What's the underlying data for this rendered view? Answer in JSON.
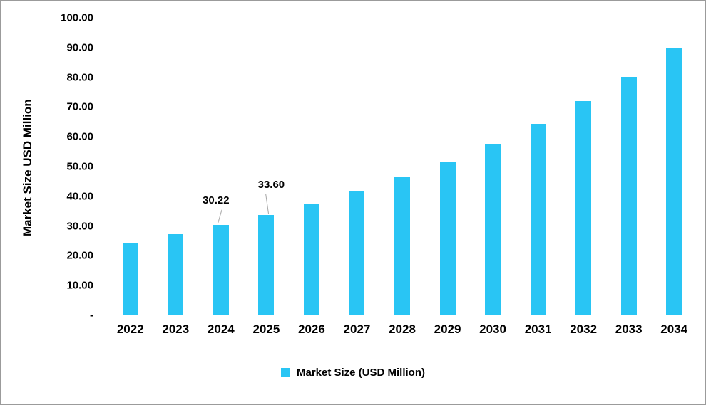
{
  "chart_data": {
    "type": "bar",
    "title": "",
    "xlabel": "",
    "ylabel": "Market Size USD Million",
    "legend": "Market Size (USD Million)",
    "ylim": [
      0,
      100
    ],
    "grid": false,
    "legend_position": "bottom-center",
    "bar_color": "#29c5f4",
    "y_ticks": [
      "100.00",
      "90.00",
      "80.00",
      "70.00",
      "60.00",
      "50.00",
      "40.00",
      "30.00",
      "20.00",
      "10.00",
      "-"
    ],
    "categories": [
      "2022",
      "2023",
      "2024",
      "2025",
      "2026",
      "2027",
      "2028",
      "2029",
      "2030",
      "2031",
      "2032",
      "2033",
      "2034"
    ],
    "values": [
      24.0,
      27.2,
      30.22,
      33.6,
      37.5,
      41.6,
      46.3,
      51.5,
      57.5,
      64.2,
      71.9,
      80.2,
      89.8
    ],
    "annotations": [
      {
        "category": "2024",
        "text": "30.22"
      },
      {
        "category": "2025",
        "text": "33.60"
      }
    ]
  }
}
